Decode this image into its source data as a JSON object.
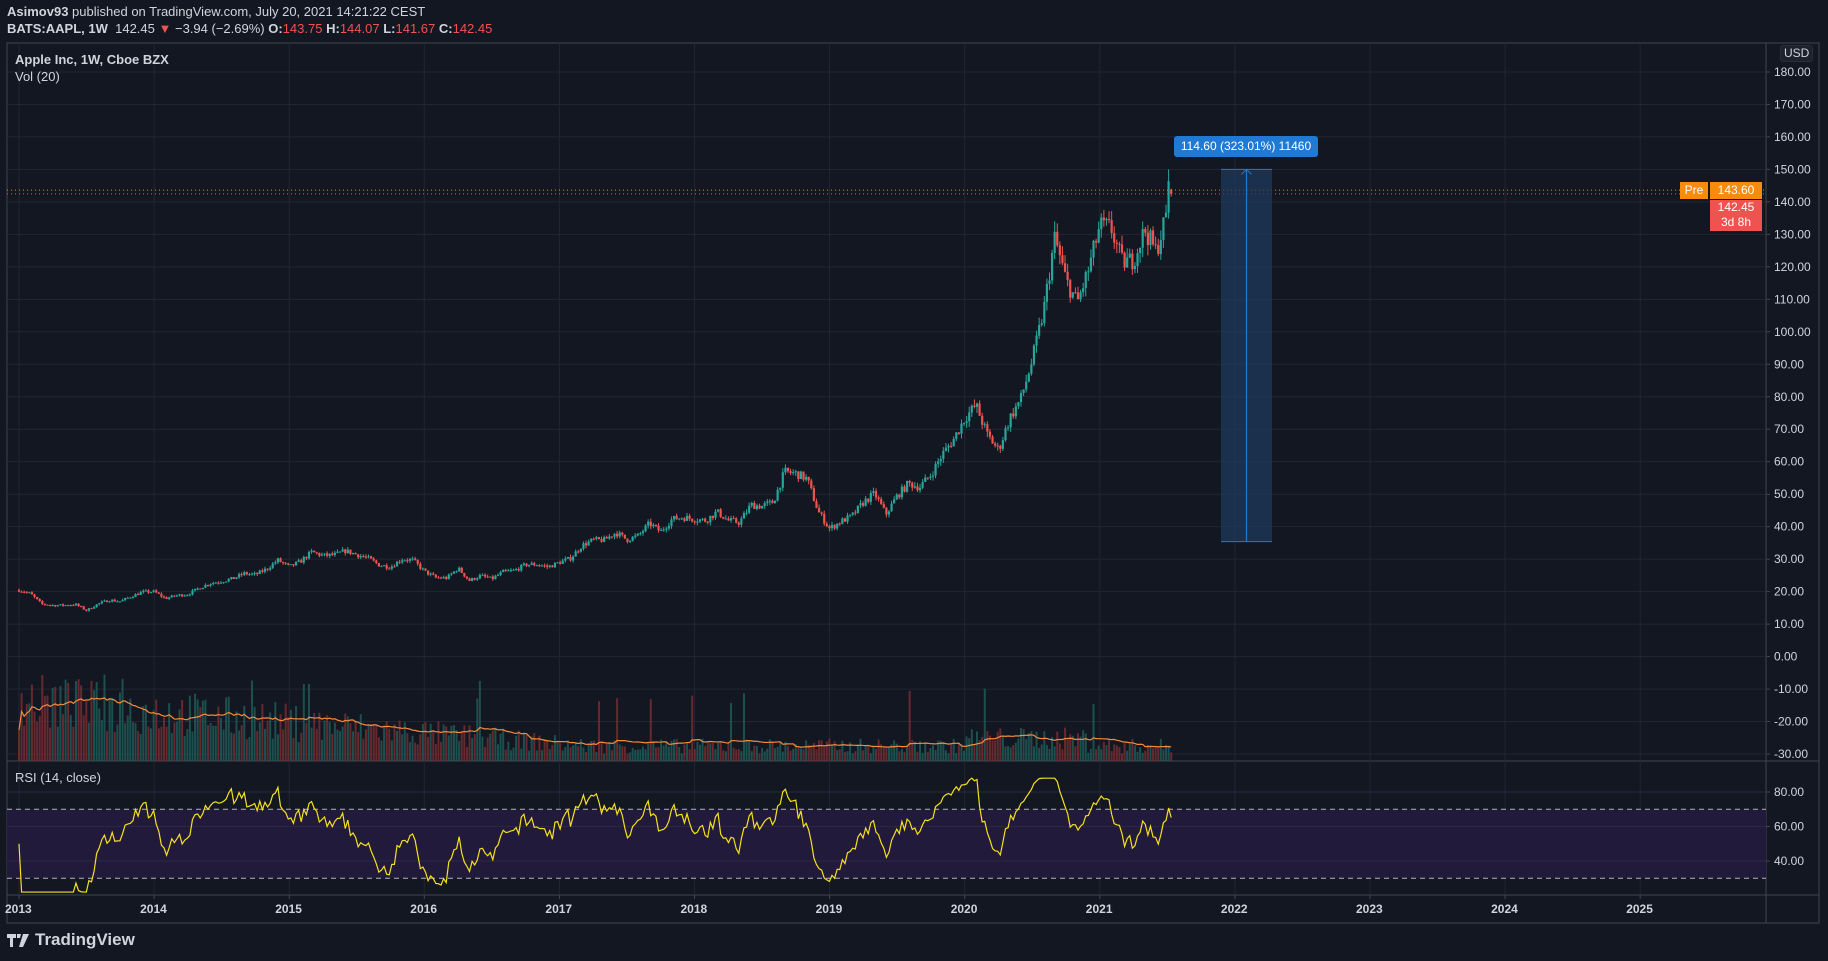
{
  "header": {
    "author": "Asimov93",
    "published_text": "published on TradingView.com, July 20, 2021 14:21:22 CEST",
    "symbol": "BATS:AAPL, 1W",
    "last": "142.45",
    "change": "−3.94 (−2.69%)",
    "open_label": "O:",
    "open": "143.75",
    "high_label": "H:",
    "high": "144.07",
    "low_label": "L:",
    "low": "141.67",
    "close_label": "C:",
    "close": "142.45"
  },
  "legend": {
    "main": "Apple Inc, 1W, Cboe BZX",
    "volume": "Vol (20)",
    "rsi": "RSI (14, close)"
  },
  "price_axis": {
    "currency": "USD",
    "ticks": [
      "180.00",
      "170.00",
      "160.00",
      "150.00",
      "140.00",
      "130.00",
      "120.00",
      "110.00",
      "100.00",
      "90.00",
      "80.00",
      "70.00",
      "60.00",
      "50.00",
      "40.00",
      "30.00",
      "20.00",
      "10.00",
      "0.00",
      "-10.00",
      "-20.00",
      "-30.00"
    ],
    "pre_label": "Pre",
    "pre_price": "143.60",
    "last_price": "142.45",
    "countdown": "3d 8h"
  },
  "rsi_axis": {
    "ticks": [
      "80.00",
      "60.00",
      "40.00"
    ]
  },
  "time_axis": {
    "ticks": [
      "2013",
      "2014",
      "2015",
      "2016",
      "2017",
      "2018",
      "2019",
      "2020",
      "2021",
      "2022",
      "2023",
      "2024",
      "2025"
    ]
  },
  "measure": {
    "label": "114.60 (323.01%) 11460",
    "from": 35.4,
    "to": 150.0
  },
  "colors": {
    "background": "#131722",
    "up": "#26a69a",
    "down": "#ef5350",
    "rsi": "#f5e11b",
    "vol_ma": "#f68b3a",
    "measure": "#2079d2",
    "pre": "#f68b0e"
  },
  "chart_data": {
    "type": "candlestick",
    "interval": "1W",
    "ylim": [
      -30,
      180
    ],
    "grid": true,
    "monthly_close": {
      "start": "2013-01",
      "values": [
        19.4,
        16.2,
        15.8,
        15.8,
        16.1,
        14.2,
        16.2,
        17.4,
        17.0,
        18.6,
        19.9,
        20.0,
        17.9,
        18.8,
        19.2,
        21.1,
        22.6,
        23.2,
        24.0,
        25.6,
        25.2,
        27.0,
        29.7,
        27.6,
        29.3,
        32.2,
        31.1,
        31.3,
        32.6,
        31.4,
        30.3,
        28.2,
        27.6,
        30.0,
        29.7,
        26.3,
        24.3,
        24.2,
        27.2,
        23.4,
        24.9,
        23.9,
        26.1,
        26.5,
        28.3,
        28.4,
        27.6,
        29.0,
        30.3,
        34.2,
        35.9,
        35.9,
        38.2,
        36.0,
        37.2,
        41.0,
        38.5,
        42.3,
        42.9,
        42.3,
        41.9,
        44.6,
        41.9,
        41.3,
        46.7,
        46.3,
        47.6,
        56.9,
        56.4,
        54.7,
        44.6,
        39.4,
        41.6,
        43.3,
        47.5,
        50.2,
        43.8,
        49.5,
        53.3,
        52.2,
        56.0,
        62.2,
        66.8,
        73.4,
        77.4,
        68.3,
        63.6,
        73.4,
        79.5,
        91.2,
        106.3,
        129.0,
        115.8,
        108.9,
        119.1,
        132.7,
        131.9,
        121.3,
        122.2,
        131.5,
        124.6,
        137.0,
        142.45
      ]
    },
    "rsi": {
      "period": 14,
      "upper": 70,
      "lower": 30,
      "ylim": [
        20,
        90
      ]
    },
    "volume_ma_period": 20
  }
}
